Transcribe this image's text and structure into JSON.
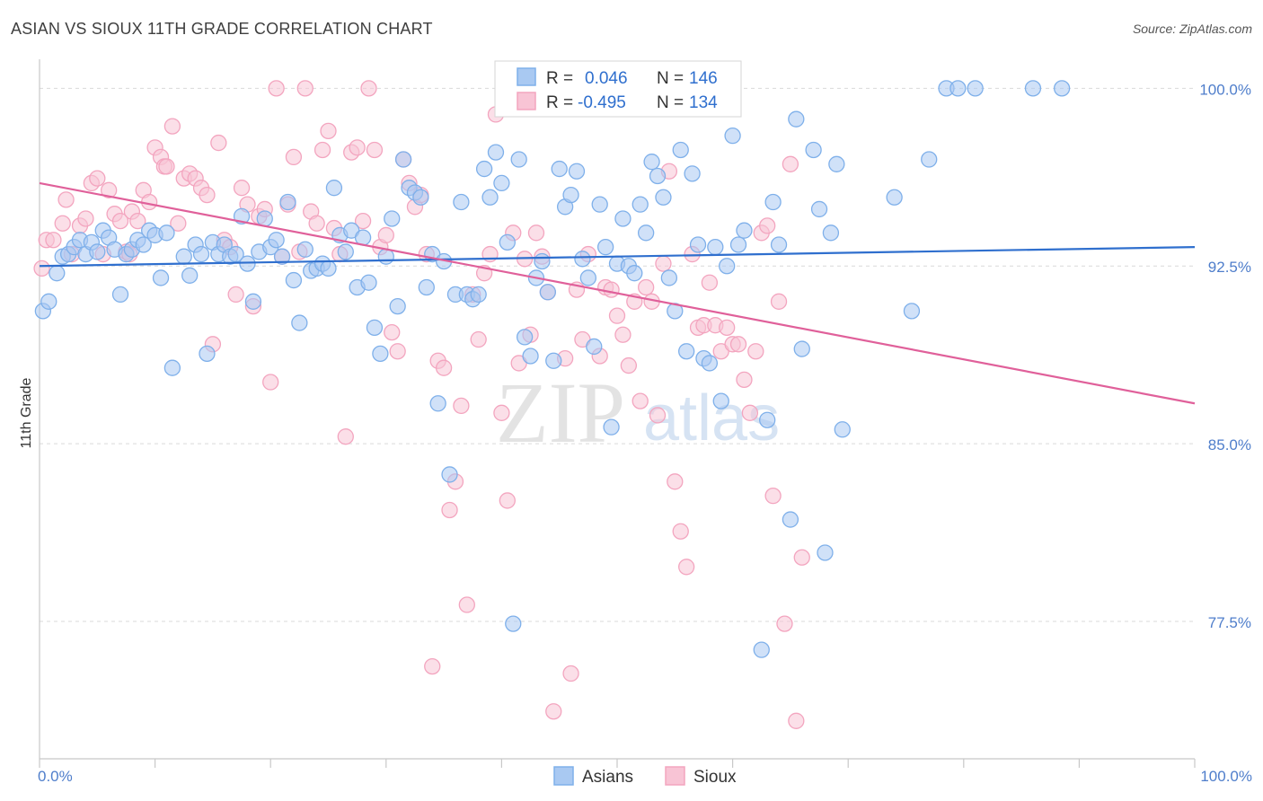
{
  "title": "ASIAN VS SIOUX 11TH GRADE CORRELATION CHART",
  "source": "Source: ZipAtlas.com",
  "watermark": {
    "zip": "ZIP",
    "atlas": "atlas"
  },
  "chart_data": {
    "type": "scatter",
    "ylabel": "11th Grade",
    "xlim": [
      0,
      100
    ],
    "ylim": [
      71.7,
      101.0
    ],
    "x_tick_labels": [
      "0.0%",
      "100.0%"
    ],
    "y_ticks": [
      {
        "value": 100.0,
        "label": "100.0%"
      },
      {
        "value": 92.5,
        "label": "92.5%"
      },
      {
        "value": 85.0,
        "label": "85.0%"
      },
      {
        "value": 77.5,
        "label": "77.5%"
      }
    ],
    "grid": "horizontal dashed",
    "legend_position": "top-center",
    "series": [
      {
        "name": "Asians",
        "color": "#7fb0ea",
        "fill": "#a9c9f2",
        "line_color": "#2f6fce",
        "R_label": "R =",
        "R_value": "0.046",
        "N_label": "N =",
        "N_value": "146",
        "trend": [
          [
            0,
            92.5
          ],
          [
            100,
            93.3
          ]
        ],
        "points": [
          [
            0.3,
            90.6
          ],
          [
            0.8,
            91.0
          ],
          [
            1.5,
            92.2
          ],
          [
            2.0,
            92.9
          ],
          [
            2.5,
            93.0
          ],
          [
            3.0,
            93.3
          ],
          [
            3.5,
            93.6
          ],
          [
            4.0,
            93.0
          ],
          [
            4.5,
            93.5
          ],
          [
            5.0,
            93.1
          ],
          [
            5.5,
            94.0
          ],
          [
            6.0,
            93.7
          ],
          [
            6.5,
            93.2
          ],
          [
            7.0,
            91.3
          ],
          [
            7.5,
            93.0
          ],
          [
            8.0,
            93.2
          ],
          [
            8.5,
            93.6
          ],
          [
            9.0,
            93.4
          ],
          [
            9.5,
            94.0
          ],
          [
            10.0,
            93.8
          ],
          [
            10.5,
            92.0
          ],
          [
            11.0,
            93.9
          ],
          [
            11.5,
            88.2
          ],
          [
            12.5,
            92.9
          ],
          [
            13.0,
            92.1
          ],
          [
            13.5,
            93.4
          ],
          [
            14.0,
            93.0
          ],
          [
            14.5,
            88.8
          ],
          [
            15.0,
            93.5
          ],
          [
            15.5,
            93.0
          ],
          [
            16.0,
            93.4
          ],
          [
            16.5,
            92.9
          ],
          [
            17.0,
            93.0
          ],
          [
            17.5,
            94.6
          ],
          [
            18.0,
            92.6
          ],
          [
            18.5,
            91.0
          ],
          [
            19.0,
            93.1
          ],
          [
            19.5,
            94.5
          ],
          [
            20.0,
            93.3
          ],
          [
            20.5,
            93.6
          ],
          [
            21.0,
            92.9
          ],
          [
            21.5,
            95.2
          ],
          [
            22.0,
            91.9
          ],
          [
            22.5,
            90.1
          ],
          [
            23.0,
            93.2
          ],
          [
            23.5,
            92.3
          ],
          [
            24.0,
            92.4
          ],
          [
            24.5,
            92.6
          ],
          [
            25.0,
            92.4
          ],
          [
            25.5,
            95.8
          ],
          [
            26.0,
            93.8
          ],
          [
            26.5,
            93.1
          ],
          [
            27.0,
            94.0
          ],
          [
            27.5,
            91.6
          ],
          [
            28.0,
            93.7
          ],
          [
            28.5,
            91.8
          ],
          [
            29.0,
            89.9
          ],
          [
            29.5,
            88.8
          ],
          [
            30.0,
            92.9
          ],
          [
            30.5,
            94.5
          ],
          [
            31.0,
            90.8
          ],
          [
            31.5,
            97.0
          ],
          [
            32.0,
            95.8
          ],
          [
            32.5,
            95.6
          ],
          [
            33.0,
            95.4
          ],
          [
            33.5,
            91.6
          ],
          [
            34.0,
            93.0
          ],
          [
            34.5,
            86.7
          ],
          [
            35.0,
            92.7
          ],
          [
            35.5,
            83.7
          ],
          [
            36.0,
            91.3
          ],
          [
            36.5,
            95.2
          ],
          [
            37.0,
            91.3
          ],
          [
            37.5,
            91.1
          ],
          [
            38.0,
            91.3
          ],
          [
            38.5,
            96.6
          ],
          [
            39.0,
            95.4
          ],
          [
            39.5,
            97.3
          ],
          [
            40.0,
            96.0
          ],
          [
            40.5,
            93.5
          ],
          [
            41.0,
            77.4
          ],
          [
            41.5,
            97.0
          ],
          [
            42.0,
            89.5
          ],
          [
            42.5,
            88.7
          ],
          [
            43.0,
            92.0
          ],
          [
            43.5,
            92.7
          ],
          [
            44.0,
            91.4
          ],
          [
            44.5,
            88.5
          ],
          [
            45.0,
            96.6
          ],
          [
            45.5,
            95.0
          ],
          [
            46.0,
            95.5
          ],
          [
            46.5,
            96.5
          ],
          [
            47.0,
            92.8
          ],
          [
            47.5,
            92.0
          ],
          [
            48.0,
            89.1
          ],
          [
            48.5,
            95.1
          ],
          [
            49.0,
            93.3
          ],
          [
            49.5,
            85.7
          ],
          [
            50.0,
            92.6
          ],
          [
            50.5,
            94.5
          ],
          [
            51.0,
            92.5
          ],
          [
            51.5,
            92.2
          ],
          [
            52.0,
            95.1
          ],
          [
            52.5,
            93.9
          ],
          [
            53.0,
            96.9
          ],
          [
            53.5,
            96.3
          ],
          [
            54.0,
            95.4
          ],
          [
            54.5,
            92.0
          ],
          [
            55.0,
            90.6
          ],
          [
            55.5,
            97.4
          ],
          [
            56.0,
            88.9
          ],
          [
            56.5,
            96.4
          ],
          [
            57.0,
            93.4
          ],
          [
            57.5,
            88.6
          ],
          [
            58.0,
            88.4
          ],
          [
            58.5,
            93.3
          ],
          [
            59.0,
            86.8
          ],
          [
            59.5,
            92.5
          ],
          [
            60.0,
            98.0
          ],
          [
            60.5,
            93.4
          ],
          [
            61.0,
            94.0
          ],
          [
            62.5,
            76.3
          ],
          [
            63.0,
            86.0
          ],
          [
            63.5,
            95.2
          ],
          [
            64.0,
            93.4
          ],
          [
            65.0,
            81.8
          ],
          [
            65.5,
            98.7
          ],
          [
            66.0,
            89.0
          ],
          [
            67.0,
            97.4
          ],
          [
            67.5,
            94.9
          ],
          [
            68.0,
            80.4
          ],
          [
            68.5,
            93.9
          ],
          [
            69.0,
            96.8
          ],
          [
            69.5,
            85.6
          ],
          [
            74.0,
            95.4
          ],
          [
            75.5,
            90.6
          ],
          [
            77.0,
            97.0
          ],
          [
            78.5,
            100.0
          ],
          [
            79.5,
            100.0
          ],
          [
            81.0,
            100.0
          ],
          [
            86.0,
            100.0
          ],
          [
            88.5,
            100.0
          ]
        ]
      },
      {
        "name": "Sioux",
        "color": "#f3a5bf",
        "fill": "#f8c4d5",
        "line_color": "#e0609a",
        "R_label": "R =",
        "R_value": "-0.495",
        "N_label": "N =",
        "N_value": "134",
        "trend": [
          [
            0,
            96.0
          ],
          [
            100,
            86.7
          ]
        ],
        "points": [
          [
            0.2,
            92.4
          ],
          [
            0.6,
            93.6
          ],
          [
            1.2,
            93.6
          ],
          [
            2.0,
            94.3
          ],
          [
            2.3,
            95.3
          ],
          [
            2.8,
            93.0
          ],
          [
            3.5,
            94.2
          ],
          [
            4.0,
            94.5
          ],
          [
            4.5,
            96.0
          ],
          [
            5.0,
            96.2
          ],
          [
            5.5,
            93.0
          ],
          [
            6.0,
            95.7
          ],
          [
            6.5,
            94.7
          ],
          [
            7.0,
            94.4
          ],
          [
            7.5,
            93.1
          ],
          [
            7.8,
            93.0
          ],
          [
            8.0,
            94.8
          ],
          [
            8.5,
            94.4
          ],
          [
            9.0,
            95.7
          ],
          [
            9.5,
            95.2
          ],
          [
            10.0,
            97.5
          ],
          [
            10.5,
            97.1
          ],
          [
            10.8,
            96.7
          ],
          [
            11.0,
            96.7
          ],
          [
            11.5,
            98.4
          ],
          [
            12.0,
            94.3
          ],
          [
            12.5,
            96.2
          ],
          [
            13.0,
            96.4
          ],
          [
            13.5,
            96.2
          ],
          [
            14.0,
            95.8
          ],
          [
            14.5,
            95.5
          ],
          [
            15.0,
            89.2
          ],
          [
            15.5,
            97.7
          ],
          [
            16.0,
            93.6
          ],
          [
            16.5,
            93.3
          ],
          [
            17.0,
            91.3
          ],
          [
            17.5,
            95.8
          ],
          [
            18.0,
            95.1
          ],
          [
            18.5,
            90.8
          ],
          [
            19.0,
            94.6
          ],
          [
            19.5,
            94.9
          ],
          [
            20.0,
            87.6
          ],
          [
            20.5,
            100.0
          ],
          [
            21.0,
            92.9
          ],
          [
            21.5,
            95.1
          ],
          [
            22.0,
            97.1
          ],
          [
            22.5,
            93.1
          ],
          [
            23.0,
            100.0
          ],
          [
            23.5,
            94.8
          ],
          [
            24.0,
            94.3
          ],
          [
            24.5,
            97.4
          ],
          [
            25.0,
            98.2
          ],
          [
            25.5,
            94.1
          ],
          [
            26.0,
            93.0
          ],
          [
            26.5,
            85.3
          ],
          [
            27.0,
            97.3
          ],
          [
            27.5,
            97.5
          ],
          [
            28.0,
            94.4
          ],
          [
            28.5,
            100.0
          ],
          [
            29.0,
            97.4
          ],
          [
            29.5,
            93.3
          ],
          [
            30.0,
            93.8
          ],
          [
            30.5,
            89.7
          ],
          [
            31.0,
            88.9
          ],
          [
            31.5,
            97.0
          ],
          [
            32.0,
            96.0
          ],
          [
            32.5,
            95.0
          ],
          [
            33.0,
            95.5
          ],
          [
            33.5,
            93.0
          ],
          [
            34.0,
            75.6
          ],
          [
            34.5,
            88.5
          ],
          [
            35.0,
            88.2
          ],
          [
            35.5,
            82.2
          ],
          [
            36.0,
            83.4
          ],
          [
            36.5,
            86.6
          ],
          [
            37.0,
            78.2
          ],
          [
            37.5,
            91.3
          ],
          [
            38.0,
            89.4
          ],
          [
            38.5,
            92.2
          ],
          [
            39.0,
            93.0
          ],
          [
            39.5,
            98.9
          ],
          [
            40.0,
            86.3
          ],
          [
            40.5,
            82.6
          ],
          [
            41.0,
            93.9
          ],
          [
            41.5,
            88.4
          ],
          [
            42.0,
            92.8
          ],
          [
            42.5,
            89.6
          ],
          [
            43.0,
            93.9
          ],
          [
            43.5,
            92.9
          ],
          [
            44.0,
            91.4
          ],
          [
            44.5,
            73.7
          ],
          [
            45.0,
            100.0
          ],
          [
            45.5,
            88.6
          ],
          [
            46.0,
            75.3
          ],
          [
            46.5,
            91.5
          ],
          [
            47.0,
            89.4
          ],
          [
            47.5,
            93.0
          ],
          [
            48.0,
            100.0
          ],
          [
            48.5,
            88.7
          ],
          [
            49.0,
            91.6
          ],
          [
            49.5,
            91.5
          ],
          [
            50.0,
            90.4
          ],
          [
            50.5,
            89.6
          ],
          [
            51.0,
            88.3
          ],
          [
            51.5,
            91.0
          ],
          [
            52.0,
            86.8
          ],
          [
            52.5,
            91.6
          ],
          [
            53.0,
            91.0
          ],
          [
            53.5,
            86.2
          ],
          [
            54.0,
            92.6
          ],
          [
            54.5,
            96.5
          ],
          [
            55.0,
            83.4
          ],
          [
            55.5,
            81.3
          ],
          [
            56.0,
            79.8
          ],
          [
            56.5,
            93.0
          ],
          [
            57.0,
            89.9
          ],
          [
            57.5,
            90.0
          ],
          [
            58.0,
            91.8
          ],
          [
            58.5,
            90.0
          ],
          [
            59.0,
            88.9
          ],
          [
            59.5,
            89.9
          ],
          [
            60.0,
            89.2
          ],
          [
            60.5,
            89.2
          ],
          [
            61.0,
            87.7
          ],
          [
            61.5,
            86.3
          ],
          [
            62.0,
            88.9
          ],
          [
            62.5,
            93.9
          ],
          [
            63.0,
            94.2
          ],
          [
            63.5,
            82.8
          ],
          [
            64.0,
            91.0
          ],
          [
            64.5,
            77.4
          ],
          [
            65.0,
            96.8
          ],
          [
            65.5,
            73.3
          ],
          [
            66.0,
            80.2
          ]
        ]
      }
    ]
  }
}
